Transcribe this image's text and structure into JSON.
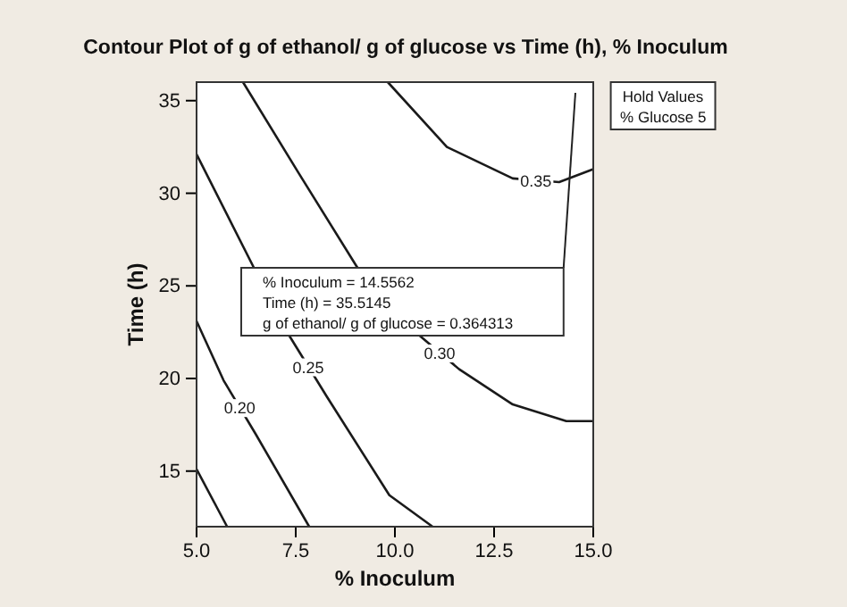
{
  "chart_data": {
    "type": "line",
    "title": "Contour Plot of g of ethanol/ g of glucose vs Time (h), % Inoculum",
    "xlabel": "% Inoculum",
    "ylabel": "Time (h)",
    "xlim": [
      5,
      15
    ],
    "ylim": [
      12,
      36
    ],
    "xticks": [
      {
        "value": 5,
        "label": "5.0"
      },
      {
        "value": 7.5,
        "label": "7.5"
      },
      {
        "value": 10,
        "label": "10.0"
      },
      {
        "value": 12.5,
        "label": "12.5"
      },
      {
        "value": 15,
        "label": "15.0"
      }
    ],
    "yticks": [
      15,
      20,
      25,
      30,
      35
    ],
    "grid": false,
    "marker": "none",
    "line_style": "solid",
    "series": [
      {
        "color": "#1a1a1a",
        "x": [
          5,
          5.77
        ],
        "values": [
          15.1,
          12.0
        ]
      },
      {
        "name": "0.20",
        "color": "#1a1a1a",
        "x": [
          5,
          5.68,
          6.49,
          7.84
        ],
        "values": [
          23.1,
          19.9,
          17.0,
          12.0
        ]
      },
      {
        "name": "0.25",
        "color": "#1a1a1a",
        "x": [
          5,
          6.44,
          7.34,
          8.29,
          9.86,
          10.95
        ],
        "values": [
          32.1,
          26.0,
          22.3,
          19.0,
          13.7,
          12.0
        ]
      },
      {
        "name": "0.30",
        "color": "#1a1a1a",
        "x": [
          6.17,
          7.57,
          9.05,
          10.63,
          11.62,
          12.97,
          14.32,
          15
        ],
        "values": [
          36,
          31.1,
          26.0,
          22.3,
          20.5,
          18.6,
          17.7,
          17.7
        ]
      },
      {
        "name": "0.35",
        "color": "#1a1a1a",
        "x": [
          9.82,
          11.31,
          12.97,
          14.14,
          15
        ],
        "values": [
          36,
          32.5,
          30.8,
          30.6,
          31.3
        ]
      }
    ],
    "annotations": [
      "% Inoculum = 14.5562\nTime (h) = 35.5145\ng of ethanol/ g of glucose = 0.364313",
      "Hold Values\n% Glucose  5"
    ]
  }
}
